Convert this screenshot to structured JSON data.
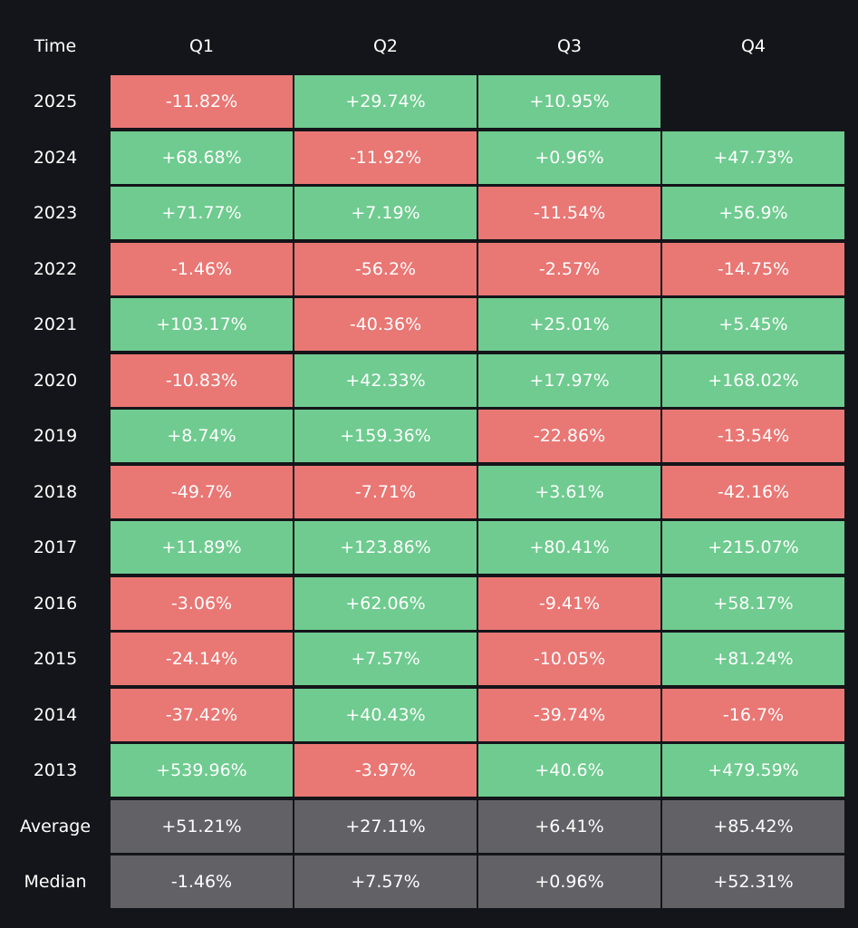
{
  "chart_data": {
    "type": "heatmap",
    "row_header": "Time",
    "columns": [
      "Q1",
      "Q2",
      "Q3",
      "Q4"
    ],
    "rows": [
      {
        "label": "2025",
        "values": [
          "-11.82%",
          "+29.74%",
          "+10.95%",
          null
        ]
      },
      {
        "label": "2024",
        "values": [
          "+68.68%",
          "-11.92%",
          "+0.96%",
          "+47.73%"
        ]
      },
      {
        "label": "2023",
        "values": [
          "+71.77%",
          "+7.19%",
          "-11.54%",
          "+56.9%"
        ]
      },
      {
        "label": "2022",
        "values": [
          "-1.46%",
          "-56.2%",
          "-2.57%",
          "-14.75%"
        ]
      },
      {
        "label": "2021",
        "values": [
          "+103.17%",
          "-40.36%",
          "+25.01%",
          "+5.45%"
        ]
      },
      {
        "label": "2020",
        "values": [
          "-10.83%",
          "+42.33%",
          "+17.97%",
          "+168.02%"
        ]
      },
      {
        "label": "2019",
        "values": [
          "+8.74%",
          "+159.36%",
          "-22.86%",
          "-13.54%"
        ]
      },
      {
        "label": "2018",
        "values": [
          "-49.7%",
          "-7.71%",
          "+3.61%",
          "-42.16%"
        ]
      },
      {
        "label": "2017",
        "values": [
          "+11.89%",
          "+123.86%",
          "+80.41%",
          "+215.07%"
        ]
      },
      {
        "label": "2016",
        "values": [
          "-3.06%",
          "+62.06%",
          "-9.41%",
          "+58.17%"
        ]
      },
      {
        "label": "2015",
        "values": [
          "-24.14%",
          "+7.57%",
          "-10.05%",
          "+81.24%"
        ]
      },
      {
        "label": "2014",
        "values": [
          "-37.42%",
          "+40.43%",
          "-39.74%",
          "-16.7%"
        ]
      },
      {
        "label": "2013",
        "values": [
          "+539.96%",
          "-3.97%",
          "+40.6%",
          "+479.59%"
        ]
      }
    ],
    "summary_rows": [
      {
        "label": "Average",
        "values": [
          "+51.21%",
          "+27.11%",
          "+6.41%",
          "+85.42%"
        ]
      },
      {
        "label": "Median",
        "values": [
          "-1.46%",
          "+7.57%",
          "+0.96%",
          "+52.31%"
        ]
      }
    ]
  },
  "colors": {
    "background": "#14151a",
    "positive": "#6fcb8f",
    "negative": "#e97774",
    "summary": "#626266",
    "text": "#ffffff"
  }
}
